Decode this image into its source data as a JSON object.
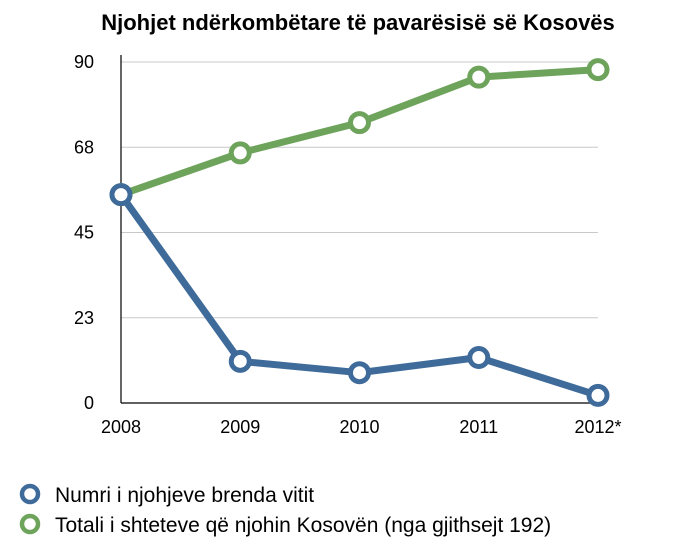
{
  "chart_data": {
    "type": "line",
    "title": "Njohjet ndërkombëtare të pavarësisë së Kosovës",
    "xlabel": "",
    "ylabel": "",
    "categories": [
      "2008",
      "2009",
      "2010",
      "2011",
      "2012*"
    ],
    "y_ticks": [
      "0",
      "23",
      "45",
      "68",
      "90"
    ],
    "y_tick_values": [
      0,
      22.5,
      45,
      67.5,
      90
    ],
    "ylim": [
      0,
      90
    ],
    "grid": "horizontal",
    "legend_position": "bottom",
    "series": [
      {
        "name": "Numri i njohjeve brenda vitit",
        "color": "#3F6B9B",
        "values": [
          55,
          11,
          8,
          12,
          2
        ]
      },
      {
        "name": "Totali i shteteve që njohin Kosovën (nga gjithsejt 192)",
        "color": "#6DA35A",
        "values": [
          55,
          66,
          74,
          86,
          88
        ]
      }
    ]
  }
}
